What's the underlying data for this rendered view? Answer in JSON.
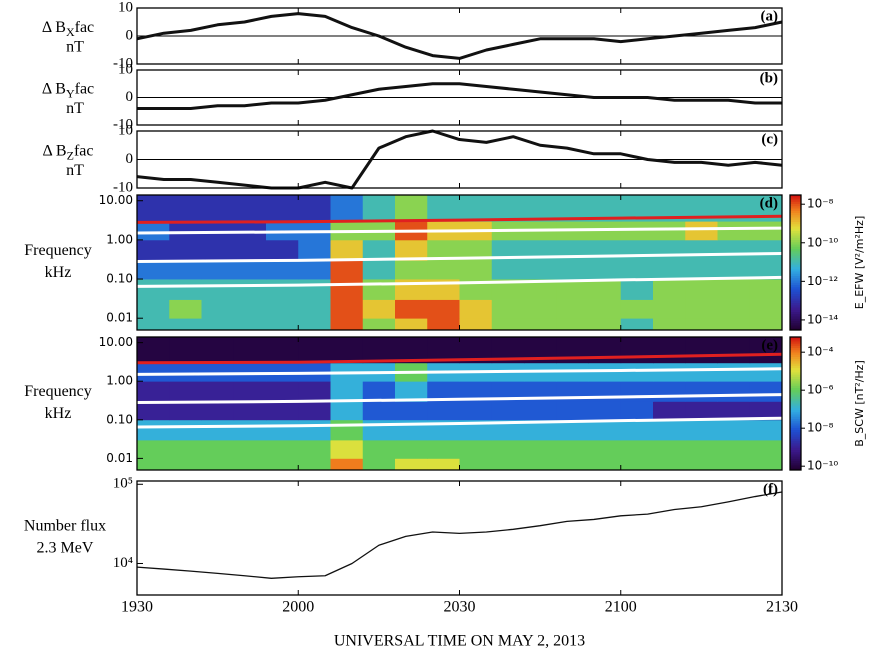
{
  "chart_data": [
    {
      "type": "line",
      "panel_label": "(a)",
      "ylabel": {
        "delta": "Δ B",
        "sub": "X",
        "rest": "fac",
        "unit": "nT"
      },
      "x": [
        0,
        5,
        10,
        15,
        20,
        25,
        30,
        35,
        40,
        45,
        50,
        55,
        60,
        65,
        70,
        75,
        80,
        85,
        90,
        95,
        100,
        105,
        110,
        115,
        120
      ],
      "values": [
        -1,
        1,
        2,
        4,
        5,
        7,
        8,
        7,
        3,
        0,
        -4,
        -7,
        -8,
        -5,
        -3,
        -1,
        -1,
        -1,
        -2,
        -1,
        0,
        1,
        2,
        3,
        5
      ],
      "color": "#111111",
      "xlim": [
        0,
        120
      ],
      "ylim": [
        -10,
        10
      ],
      "yticks": [
        -10,
        0,
        10
      ],
      "grid": true
    },
    {
      "type": "line",
      "panel_label": "(b)",
      "ylabel": {
        "delta": "Δ B",
        "sub": "Y",
        "rest": "fac",
        "unit": "nT"
      },
      "x": [
        0,
        5,
        10,
        15,
        20,
        25,
        30,
        35,
        40,
        45,
        50,
        55,
        60,
        65,
        70,
        75,
        80,
        85,
        90,
        95,
        100,
        105,
        110,
        115,
        120
      ],
      "values": [
        -4,
        -4,
        -4,
        -3,
        -3,
        -2,
        -2,
        -1,
        1,
        3,
        4,
        5,
        5,
        4,
        3,
        2,
        1,
        0,
        0,
        0,
        -1,
        -1,
        -1,
        -2,
        -2
      ],
      "color": "#111111",
      "xlim": [
        0,
        120
      ],
      "ylim": [
        -10,
        10
      ],
      "yticks": [
        -10,
        0,
        10
      ],
      "grid": true
    },
    {
      "type": "line",
      "panel_label": "(c)",
      "ylabel": {
        "delta": "Δ B",
        "sub": "Z",
        "rest": "fac",
        "unit": "nT"
      },
      "x": [
        0,
        5,
        10,
        15,
        20,
        25,
        30,
        35,
        40,
        45,
        50,
        55,
        60,
        65,
        70,
        75,
        80,
        85,
        90,
        95,
        100,
        105,
        110,
        115,
        120
      ],
      "values": [
        -6,
        -7,
        -7,
        -8,
        -9,
        -10,
        -10,
        -8,
        -10,
        4,
        8,
        10,
        7,
        6,
        8,
        5,
        4,
        2,
        2,
        0,
        -1,
        -1,
        -2,
        -1,
        -2
      ],
      "color": "#111111",
      "xlim": [
        0,
        120
      ],
      "ylim": [
        -10,
        10
      ],
      "yticks": [
        -10,
        0,
        10
      ],
      "grid": true
    },
    {
      "type": "heatmap",
      "panel_label": "(d)",
      "ylabel": [
        "Frequency",
        "kHz"
      ],
      "log_y": true,
      "log_z": true,
      "xlim": [
        0,
        120
      ],
      "ylim": [
        0.005,
        14
      ],
      "yticks": [
        0.01,
        {
          "value": 0.1,
          "label": "0.10"
        },
        {
          "value": 1,
          "label": "1.00"
        },
        {
          "value": 10,
          "label": "10.00"
        }
      ],
      "x_bins": [
        0,
        6,
        12,
        18,
        24,
        30,
        36,
        42,
        48,
        54,
        60,
        66,
        72,
        78,
        84,
        90,
        96,
        102,
        108,
        114,
        120
      ],
      "y_bins": [
        0.005,
        0.01,
        0.03,
        0.1,
        0.3,
        1,
        3,
        14
      ],
      "z": [
        [
          1e-11,
          1e-11,
          1e-11,
          1e-11,
          1e-11,
          1e-11,
          1e-08,
          1e-10,
          1e-09,
          1e-08,
          1e-09,
          1e-10,
          1e-10,
          1e-10,
          1e-10,
          1e-11,
          1e-10,
          1e-10,
          1e-10,
          1e-10
        ],
        [
          1e-11,
          1e-10,
          1e-11,
          1e-11,
          1e-11,
          1e-11,
          1e-08,
          1e-09,
          1e-08,
          1e-08,
          1e-09,
          1e-10,
          1e-10,
          1e-10,
          1e-10,
          1e-10,
          1e-10,
          1e-10,
          1e-10,
          1e-10
        ],
        [
          1e-11,
          1e-11,
          1e-11,
          1e-11,
          1e-11,
          1e-11,
          1e-08,
          1e-10,
          1e-09,
          1e-09,
          1e-10,
          1e-10,
          1e-10,
          1e-10,
          1e-10,
          1e-11,
          1e-10,
          1e-10,
          1e-10,
          1e-10
        ],
        [
          1e-12,
          1e-12,
          1e-12,
          1e-12,
          1e-12,
          1e-12,
          1e-08,
          1e-11,
          1e-10,
          1e-10,
          1e-10,
          1e-11,
          1e-11,
          1e-11,
          1e-11,
          1e-11,
          1e-11,
          1e-11,
          1e-11,
          1e-11
        ],
        [
          1e-13,
          1e-13,
          1e-13,
          1e-13,
          1e-13,
          1e-12,
          1e-09,
          1e-11,
          1e-09,
          1e-10,
          1e-10,
          1e-11,
          1e-11,
          1e-11,
          1e-11,
          1e-11,
          1e-11,
          1e-11,
          1e-11,
          1e-11
        ],
        [
          1e-12,
          1e-13,
          1e-13,
          1e-13,
          1e-12,
          1e-12,
          1e-10,
          1e-10,
          1e-08,
          1e-09,
          1e-09,
          1e-10,
          1e-10,
          1e-10,
          1e-10,
          1e-10,
          1e-10,
          1e-09,
          1e-10,
          1e-10
        ],
        [
          1e-13,
          1e-13,
          1e-13,
          1e-13,
          1e-13,
          1e-13,
          1e-12,
          1e-11,
          1e-10,
          1e-11,
          1e-11,
          1e-11,
          1e-11,
          1e-11,
          1e-11,
          1e-11,
          1e-11,
          1e-11,
          1e-11,
          1e-11
        ]
      ],
      "zlim": [
        3e-15,
        3e-08
      ],
      "zticks": [
        {
          "value": 1e-08,
          "label": "10⁻⁸"
        },
        {
          "value": 1e-10,
          "label": "10⁻¹⁰"
        },
        {
          "value": 1e-12,
          "label": "10⁻¹²"
        },
        {
          "value": 1e-14,
          "label": "10⁻¹⁴"
        }
      ],
      "zlabel": "E_EFW [V²/m²Hz]",
      "lines_x": [
        0,
        30,
        60,
        90,
        120
      ],
      "lines": [
        {
          "color": "#e02020",
          "values": [
            2.8,
            2.9,
            3.2,
            3.6,
            4.0
          ]
        },
        {
          "color": "#ffffff",
          "values": [
            1.5,
            1.6,
            1.7,
            1.85,
            2.0
          ]
        },
        {
          "color": "#ffffff",
          "values": [
            0.28,
            0.3,
            0.34,
            0.39,
            0.45
          ]
        },
        {
          "color": "#ffffff",
          "values": [
            0.065,
            0.07,
            0.08,
            0.095,
            0.11
          ]
        }
      ]
    },
    {
      "type": "heatmap",
      "panel_label": "(e)",
      "ylabel": [
        "Frequency",
        "kHz"
      ],
      "log_y": true,
      "log_z": true,
      "xlim": [
        0,
        120
      ],
      "ylim": [
        0.005,
        14
      ],
      "yticks": [
        0.01,
        {
          "value": 0.1,
          "label": "0.10"
        },
        {
          "value": 1,
          "label": "1.00"
        },
        {
          "value": 10,
          "label": "10.00"
        }
      ],
      "x_bins": [
        0,
        6,
        12,
        18,
        24,
        30,
        36,
        42,
        48,
        54,
        60,
        66,
        72,
        78,
        84,
        90,
        96,
        102,
        108,
        114,
        120
      ],
      "y_bins": [
        0.005,
        0.01,
        0.03,
        0.1,
        0.3,
        1,
        3,
        14
      ],
      "z": [
        [
          1e-06,
          1e-06,
          1e-06,
          1e-06,
          1e-06,
          1e-06,
          0.0001,
          1e-06,
          1e-05,
          1e-05,
          1e-06,
          1e-06,
          1e-06,
          1e-06,
          1e-06,
          1e-06,
          1e-06,
          1e-06,
          1e-06,
          1e-06
        ],
        [
          1e-06,
          1e-06,
          1e-06,
          1e-06,
          1e-06,
          1e-06,
          1e-05,
          1e-06,
          1e-06,
          1e-06,
          1e-06,
          1e-06,
          1e-06,
          1e-06,
          1e-06,
          1e-06,
          1e-06,
          1e-06,
          1e-06,
          1e-06
        ],
        [
          1e-07,
          1e-07,
          1e-07,
          1e-07,
          1e-07,
          1e-07,
          1e-06,
          1e-07,
          1e-07,
          1e-07,
          1e-07,
          1e-07,
          1e-07,
          1e-07,
          1e-07,
          1e-07,
          1e-07,
          1e-07,
          1e-07,
          1e-07
        ],
        [
          1e-09,
          1e-09,
          1e-09,
          1e-09,
          1e-09,
          1e-09,
          1e-07,
          1e-08,
          1e-08,
          1e-08,
          1e-08,
          1e-08,
          1e-08,
          1e-08,
          1e-08,
          1e-08,
          1e-09,
          1e-09,
          1e-09,
          1e-09
        ],
        [
          1e-09,
          1e-09,
          1e-09,
          1e-09,
          1e-09,
          1e-09,
          1e-07,
          1e-08,
          1e-07,
          1e-08,
          1e-08,
          1e-08,
          1e-08,
          1e-08,
          1e-08,
          1e-08,
          1e-08,
          1e-08,
          1e-08,
          1e-08
        ],
        [
          1e-08,
          1e-08,
          1e-08,
          1e-08,
          1e-08,
          1e-08,
          1e-07,
          1e-07,
          1e-06,
          1e-07,
          1e-07,
          1e-07,
          1e-07,
          1e-07,
          1e-07,
          1e-07,
          1e-07,
          1e-07,
          1e-07,
          1e-07
        ],
        [
          1e-10,
          1e-10,
          1e-10,
          1e-10,
          1e-10,
          1e-10,
          1e-10,
          1e-10,
          1e-10,
          1e-10,
          1e-10,
          1e-10,
          1e-10,
          1e-10,
          1e-10,
          1e-10,
          1e-10,
          1e-10,
          1e-10,
          1e-10
        ]
      ],
      "zlim": [
        6.3e-11,
        0.00063
      ],
      "zticks": [
        {
          "value": 0.0001,
          "label": "10⁻⁴"
        },
        {
          "value": 1e-06,
          "label": "10⁻⁶"
        },
        {
          "value": 1e-08,
          "label": "10⁻⁸"
        },
        {
          "value": 1e-10,
          "label": "10⁻¹⁰"
        }
      ],
      "zlabel": "B_SCW [nT²/Hz]",
      "lines_x": [
        0,
        30,
        60,
        90,
        120
      ],
      "lines": [
        {
          "color": "#e02020",
          "values": [
            3.0,
            3.1,
            3.6,
            4.2,
            5.0
          ]
        },
        {
          "color": "#ffffff",
          "values": [
            1.5,
            1.6,
            1.75,
            1.9,
            2.1
          ]
        },
        {
          "color": "#ffffff",
          "values": [
            0.28,
            0.3,
            0.34,
            0.39,
            0.45
          ]
        },
        {
          "color": "#ffffff",
          "values": [
            0.065,
            0.07,
            0.08,
            0.095,
            0.11
          ]
        }
      ]
    },
    {
      "type": "line",
      "panel_label": "(f)",
      "ylabel": [
        "Number flux",
        "2.3 MeV"
      ],
      "log_y": true,
      "x": [
        0,
        5,
        10,
        15,
        20,
        25,
        30,
        35,
        40,
        45,
        50,
        55,
        60,
        65,
        70,
        75,
        80,
        85,
        90,
        95,
        100,
        105,
        110,
        115,
        120
      ],
      "values": [
        9000,
        8500,
        8000,
        7500,
        7000,
        6500,
        6800,
        7000,
        10000,
        17000,
        22000,
        25000,
        24000,
        25000,
        27000,
        30000,
        34000,
        36000,
        40000,
        42000,
        48000,
        52000,
        60000,
        70000,
        80000
      ],
      "color": "#111111",
      "xlim": [
        0,
        120
      ],
      "ylim": [
        4000,
        110000
      ],
      "yticks": [
        {
          "value": 10000,
          "label": "10⁴"
        },
        {
          "value": 100000,
          "label": "10⁵"
        }
      ],
      "xticks": [
        {
          "value": 0,
          "label": "1930"
        },
        {
          "value": 30,
          "label": "2000"
        },
        {
          "value": 60,
          "label": "2030"
        },
        {
          "value": 90,
          "label": "2100"
        },
        {
          "value": 120,
          "label": "2130"
        }
      ],
      "xlabel": "UNIVERSAL TIME ON MAY 2, 2013"
    }
  ]
}
